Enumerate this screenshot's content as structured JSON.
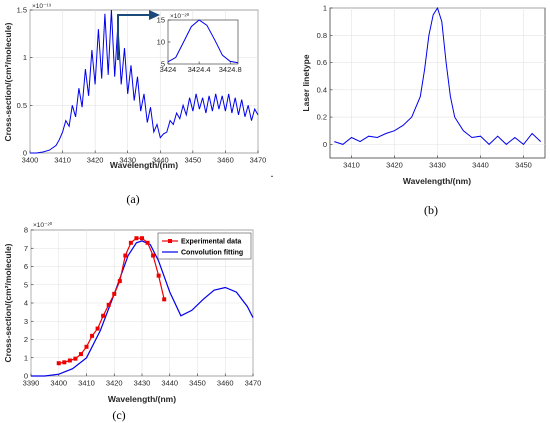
{
  "captions": {
    "a": "(a)",
    "b": "(b)",
    "c": "(c)",
    "dot": "."
  },
  "chart_data": [
    {
      "id": "a",
      "type": "line",
      "title": "",
      "xlabel": "Wavelength/(nm)",
      "ylabel": "Cross-section/(cm²/molecule)",
      "y_multiplier": "×10⁻¹⁹",
      "xlim": [
        3400,
        3470
      ],
      "ylim": [
        0,
        1.5
      ],
      "xticks": [
        3400,
        3410,
        3420,
        3430,
        3440,
        3450,
        3460,
        3470
      ],
      "yticks": [
        0,
        0.5,
        1,
        1.5
      ],
      "color": "#0000ee",
      "x": [
        3400,
        3402,
        3404,
        3406,
        3408,
        3409,
        3410,
        3411,
        3412,
        3413,
        3414,
        3415,
        3416,
        3417,
        3418,
        3419,
        3420,
        3421,
        3422,
        3423,
        3424,
        3425,
        3426,
        3427,
        3428,
        3429,
        3430,
        3431,
        3432,
        3433,
        3434,
        3435,
        3436,
        3437,
        3438,
        3439,
        3440,
        3441,
        3442,
        3443,
        3444,
        3445,
        3446,
        3447,
        3448,
        3449,
        3450,
        3451,
        3452,
        3453,
        3454,
        3455,
        3456,
        3457,
        3458,
        3459,
        3460,
        3461,
        3462,
        3463,
        3464,
        3465,
        3466,
        3467,
        3468,
        3469,
        3470
      ],
      "y": [
        0,
        0,
        0.01,
        0.03,
        0.08,
        0.14,
        0.22,
        0.34,
        0.28,
        0.5,
        0.38,
        0.68,
        0.48,
        0.88,
        0.6,
        1.08,
        0.72,
        1.3,
        0.78,
        1.46,
        0.82,
        1.5,
        0.8,
        1.35,
        0.72,
        1.1,
        0.62,
        0.92,
        0.55,
        0.8,
        0.44,
        0.62,
        0.32,
        0.48,
        0.22,
        0.3,
        0.16,
        0.2,
        0.22,
        0.34,
        0.3,
        0.42,
        0.36,
        0.5,
        0.4,
        0.58,
        0.44,
        0.62,
        0.46,
        0.58,
        0.42,
        0.6,
        0.44,
        0.62,
        0.46,
        0.6,
        0.44,
        0.62,
        0.42,
        0.58,
        0.4,
        0.56,
        0.38,
        0.5,
        0.34,
        0.46,
        0.4
      ]
    },
    {
      "id": "a-inset",
      "type": "line",
      "y_multiplier": "×10⁻²⁰",
      "xlim": [
        3424,
        3424.9
      ],
      "ylim": [
        5,
        15
      ],
      "xticks": [
        "3424",
        "3424.4",
        "3424.8"
      ],
      "yticks": [
        5,
        10,
        15
      ],
      "color": "#0000ee",
      "x": [
        3424.0,
        3424.1,
        3424.2,
        3424.3,
        3424.4,
        3424.5,
        3424.6,
        3424.7,
        3424.8,
        3424.9
      ],
      "y": [
        5.5,
        6.5,
        10,
        13.5,
        15,
        13.8,
        10.5,
        7,
        5.6,
        5.3
      ]
    },
    {
      "id": "b",
      "type": "line",
      "title": "",
      "xlabel": "Wavelength/(nm)",
      "ylabel": "Laser linetype",
      "xlim": [
        3405,
        3455
      ],
      "ylim": [
        -0.1,
        1
      ],
      "xticks": [
        3410,
        3420,
        3430,
        3440,
        3450
      ],
      "yticks": [
        0,
        0.2,
        0.4,
        0.6,
        0.8,
        1
      ],
      "color": "#0000ee",
      "x": [
        3406,
        3408,
        3410,
        3412,
        3414,
        3416,
        3418,
        3420,
        3422,
        3424,
        3426,
        3427,
        3428,
        3429,
        3430,
        3431,
        3432,
        3433,
        3434,
        3436,
        3438,
        3440,
        3442,
        3444,
        3446,
        3448,
        3450,
        3452,
        3454
      ],
      "y": [
        0.02,
        0.0,
        0.05,
        0.02,
        0.06,
        0.05,
        0.08,
        0.1,
        0.14,
        0.2,
        0.35,
        0.55,
        0.8,
        0.95,
        1.0,
        0.9,
        0.6,
        0.35,
        0.2,
        0.1,
        0.05,
        0.06,
        0.0,
        0.06,
        0.0,
        0.05,
        0.0,
        0.08,
        0.02
      ]
    },
    {
      "id": "c",
      "type": "line",
      "title": "",
      "xlabel": "Wavelength/(nm)",
      "ylabel": "Cross-section/(cm²/molecule)",
      "y_multiplier": "×10⁻²⁰",
      "xlim": [
        3390,
        3470
      ],
      "ylim": [
        0,
        8
      ],
      "xticks": [
        3390,
        3400,
        3410,
        3420,
        3430,
        3440,
        3450,
        3460,
        3470
      ],
      "yticks": [
        0,
        1,
        2,
        3,
        4,
        5,
        6,
        7,
        8
      ],
      "legend": "top-right",
      "series": [
        {
          "name": "Experimental data",
          "color": "#ee0000",
          "marker": "square",
          "x": [
            3400,
            3402,
            3404,
            3406,
            3408,
            3410,
            3412,
            3414,
            3416,
            3418,
            3420,
            3422,
            3424,
            3426,
            3428,
            3430,
            3432,
            3434,
            3436,
            3438
          ],
          "y": [
            0.7,
            0.75,
            0.85,
            0.95,
            1.2,
            1.6,
            2.2,
            2.6,
            3.3,
            3.9,
            4.5,
            5.2,
            6.6,
            7.3,
            7.55,
            7.55,
            7.3,
            6.6,
            5.5,
            4.2
          ]
        },
        {
          "name": "Convolution fitting",
          "color": "#0000ee",
          "x": [
            3390,
            3395,
            3400,
            3405,
            3410,
            3415,
            3420,
            3425,
            3428,
            3430,
            3433,
            3436,
            3440,
            3444,
            3448,
            3452,
            3456,
            3460,
            3464,
            3468,
            3470
          ],
          "y": [
            0,
            0,
            0.1,
            0.4,
            1.0,
            2.5,
            4.5,
            6.6,
            7.3,
            7.4,
            7.2,
            6.3,
            4.6,
            3.3,
            3.6,
            4.2,
            4.7,
            4.85,
            4.6,
            3.8,
            3.2
          ]
        }
      ]
    }
  ]
}
